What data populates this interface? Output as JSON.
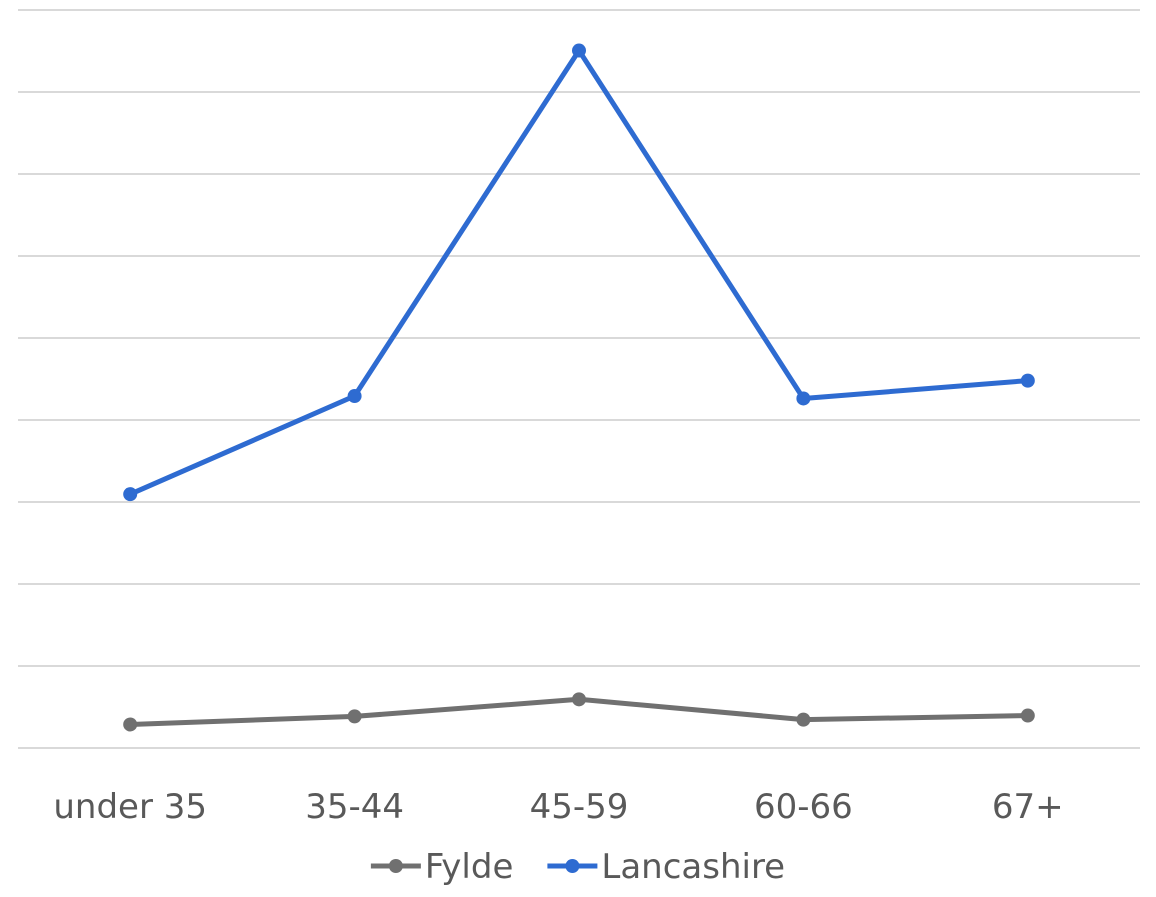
{
  "chart_data": {
    "type": "line",
    "categories": [
      "under 35",
      "35-44",
      "45-59",
      "60-66",
      "67+"
    ],
    "series": [
      {
        "name": "Fylde",
        "values": [
          1.4,
          2.4,
          4.5,
          2.0,
          2.5
        ],
        "color": "#707070"
      },
      {
        "name": "Lancashire",
        "values": [
          29.8,
          41.9,
          84.5,
          41.6,
          43.8
        ],
        "color": "#2e6bd1"
      }
    ],
    "ylim": [
      -1.5,
      89.5
    ],
    "grid": true,
    "legend_position": "bottom",
    "title": "",
    "xlabel": "",
    "ylabel": ""
  }
}
